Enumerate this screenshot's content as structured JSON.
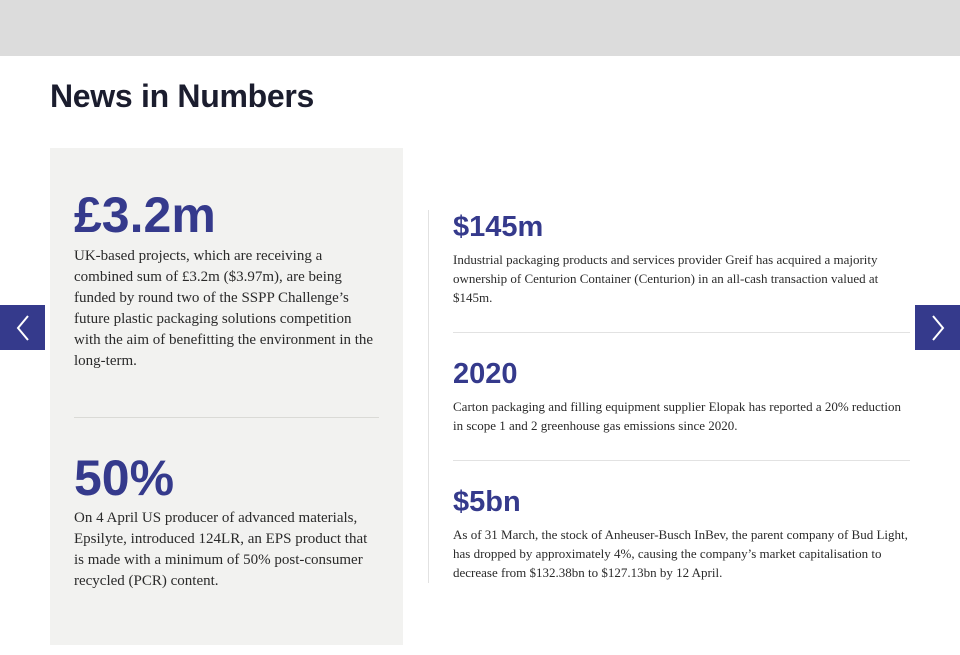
{
  "section": {
    "title": "News in Numbers"
  },
  "colors": {
    "accent": "#353a8c",
    "card_bg": "#f2f2f0",
    "top_bar": "#dcdcdc"
  },
  "nav": {
    "prev_icon": "chevron-left-icon",
    "next_icon": "chevron-right-icon"
  },
  "featured": [
    {
      "figure": "£3.2m",
      "text": "UK-based projects, which are receiving a combined sum of £3.2m ($3.97m), are being funded by round two of the SSPP Challenge’s future plastic packaging solutions competition with the aim of benefitting the environment in the long-term."
    },
    {
      "figure": "50%",
      "text": "On 4 April US producer of advanced materials, Epsilyte, introduced 124LR, an EPS product that is made with a minimum of 50% post-consumer recycled (PCR) content."
    }
  ],
  "items": [
    {
      "figure": "$145m",
      "text": "Industrial packaging products and services provider Greif has acquired a majority ownership of Centurion Container (Centurion) in an all-cash transaction valued at $145m."
    },
    {
      "figure": "2020",
      "text": "Carton packaging and filling equipment supplier Elopak has reported a 20% reduction in scope 1 and 2 greenhouse gas emissions since 2020."
    },
    {
      "figure": "$5bn",
      "text": "As of 31 March, the stock of Anheuser-Busch InBev, the parent company of Bud Light, has dropped by approximately 4%, causing the company’s market capitalisation to decrease from $132.38bn to $127.13bn by 12 April."
    }
  ]
}
